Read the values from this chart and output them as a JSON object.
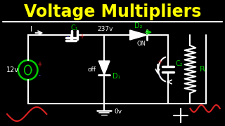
{
  "title": "Voltage Multipliers",
  "title_color": "#FFFF00",
  "bg_color": "#000000",
  "circuit_color": "#FFFFFF",
  "green_color": "#00CC00",
  "red_color": "#DD2222",
  "blue_color": "#4444FF",
  "label_12v": "12v",
  "label_c1": "C₁",
  "label_237v": "237v",
  "label_d1": "D₁",
  "label_d2": "D₂",
  "label_c2": "C₂",
  "label_rl": "Rₗ",
  "label_off": "off",
  "label_on": "ON",
  "label_0v": "0v",
  "label_i": "I"
}
